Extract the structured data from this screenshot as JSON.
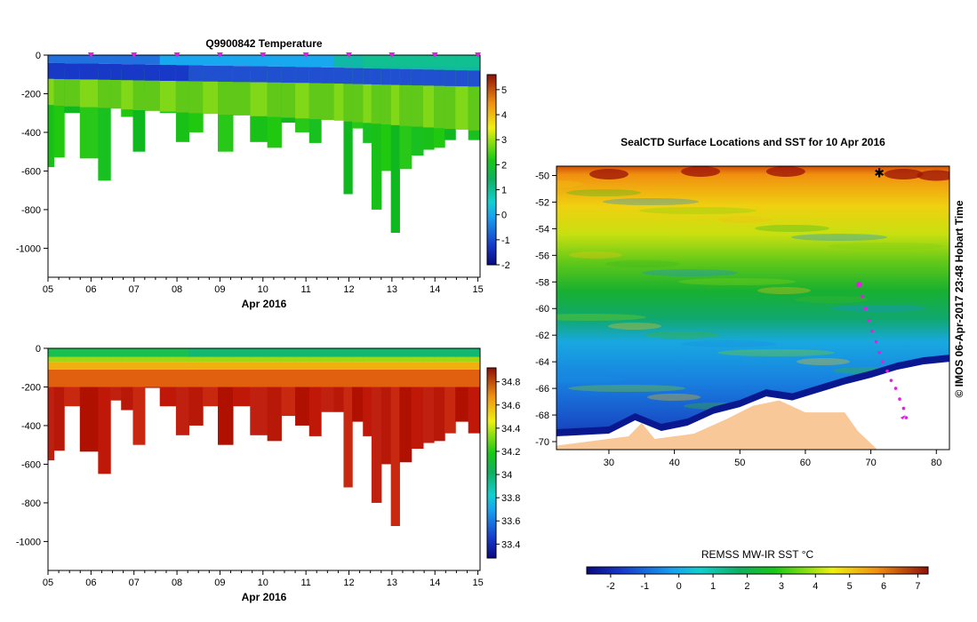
{
  "chart_data": [
    {
      "type": "heatmap",
      "title": "Q9900842  Temperature",
      "xlabel": "Apr 2016",
      "ylabel": "",
      "x_ticks": [
        "05",
        "06",
        "07",
        "08",
        "09",
        "10",
        "11",
        "12",
        "13",
        "14",
        "15"
      ],
      "xlim": [
        5,
        15.05
      ],
      "y_ticks": [
        0,
        -200,
        -400,
        -600,
        -800,
        -1000
      ],
      "ylim": [
        -1150,
        0
      ],
      "colorbar": {
        "min": -2,
        "max": 5.6,
        "ticks": [
          5,
          4,
          3,
          2,
          1,
          0,
          -1,
          -2
        ]
      },
      "profiles": [
        {
          "t": 5.02,
          "d": 580
        },
        {
          "t": 5.25,
          "d": 530
        },
        {
          "t": 5.5,
          "d": 300
        },
        {
          "t": 5.98,
          "d": 535
        },
        {
          "t": 6.35,
          "d": 650
        },
        {
          "t": 6.55,
          "d": 270
        },
        {
          "t": 6.85,
          "d": 320
        },
        {
          "t": 7.1,
          "d": 500
        },
        {
          "t": 7.4,
          "d": 205
        },
        {
          "t": 7.8,
          "d": 300
        },
        {
          "t": 8.15,
          "d": 450
        },
        {
          "t": 8.4,
          "d": 400
        },
        {
          "t": 8.8,
          "d": 300
        },
        {
          "t": 9.1,
          "d": 500
        },
        {
          "t": 9.5,
          "d": 300
        },
        {
          "t": 9.9,
          "d": 450
        },
        {
          "t": 10.3,
          "d": 480
        },
        {
          "t": 10.55,
          "d": 350
        },
        {
          "t": 10.95,
          "d": 400
        },
        {
          "t": 11.2,
          "d": 455
        },
        {
          "t": 11.5,
          "d": 330
        },
        {
          "t": 11.8,
          "d": 330
        },
        {
          "t": 11.95,
          "d": 720
        },
        {
          "t": 12.2,
          "d": 380
        },
        {
          "t": 12.45,
          "d": 455
        },
        {
          "t": 12.6,
          "d": 800
        },
        {
          "t": 12.9,
          "d": 600
        },
        {
          "t": 13.05,
          "d": 920
        },
        {
          "t": 13.3,
          "d": 590
        },
        {
          "t": 13.6,
          "d": 520
        },
        {
          "t": 13.85,
          "d": 490
        },
        {
          "t": 14.1,
          "d": 480
        },
        {
          "t": 14.35,
          "d": 440
        },
        {
          "t": 14.6,
          "d": 380
        },
        {
          "t": 14.95,
          "d": 440
        }
      ],
      "profile_markers": [
        6.0,
        7.0,
        8.0,
        9.0,
        10.0,
        11.0,
        12.0,
        13.0,
        14.0,
        15.0
      ],
      "marker_color": "#e020e0"
    },
    {
      "type": "heatmap",
      "title": "",
      "xlabel": "Apr 2016",
      "ylabel": "",
      "x_ticks": [
        "05",
        "06",
        "07",
        "08",
        "09",
        "10",
        "11",
        "12",
        "13",
        "14",
        "15"
      ],
      "xlim": [
        5,
        15.05
      ],
      "y_ticks": [
        0,
        -200,
        -400,
        -600,
        -800,
        -1000
      ],
      "ylim": [
        -1150,
        0
      ],
      "colorbar": {
        "min": 33.28,
        "max": 34.92,
        "ticks": [
          "34.8",
          "34.6",
          "34.4",
          "34.2",
          "34",
          "33.8",
          "33.6",
          "33.4"
        ]
      }
    },
    {
      "type": "heatmap",
      "title": "SealCTD Surface Locations and SST for 10 Apr 2016",
      "xlabel": "",
      "ylabel": "",
      "x_ticks": [
        30,
        40,
        50,
        60,
        70,
        80
      ],
      "xlim": [
        22,
        82
      ],
      "y_ticks": [
        -50,
        -52,
        -54,
        -56,
        -58,
        -60,
        -62,
        -64,
        -66,
        -68,
        -70
      ],
      "ylim": [
        -70.6,
        -49.3
      ],
      "colorbar": {
        "label": "REMSS MW-IR SST °C",
        "min": -2.7,
        "max": 7.3,
        "ticks": [
          -2,
          -1,
          0,
          1,
          2,
          3,
          4,
          5,
          6,
          7
        ]
      },
      "side_label": "© IMOS 06-Apr-2017 23:48 Hobart Time",
      "track": [
        [
          68.2,
          -58.2
        ],
        [
          68.7,
          -59.1
        ],
        [
          69.2,
          -60.0
        ],
        [
          69.7,
          -60.9
        ],
        [
          70.2,
          -61.7
        ],
        [
          70.8,
          -62.5
        ],
        [
          71.3,
          -63.3
        ],
        [
          71.8,
          -64.0
        ],
        [
          72.5,
          -64.7
        ],
        [
          73.1,
          -65.4
        ],
        [
          73.8,
          -66.0
        ],
        [
          74.4,
          -66.8
        ],
        [
          75.0,
          -67.5
        ],
        [
          75.4,
          -68.2
        ]
      ],
      "land_color": "#f8c898",
      "ice_color": "#ffffff",
      "marker_color": "#e020e0"
    }
  ]
}
